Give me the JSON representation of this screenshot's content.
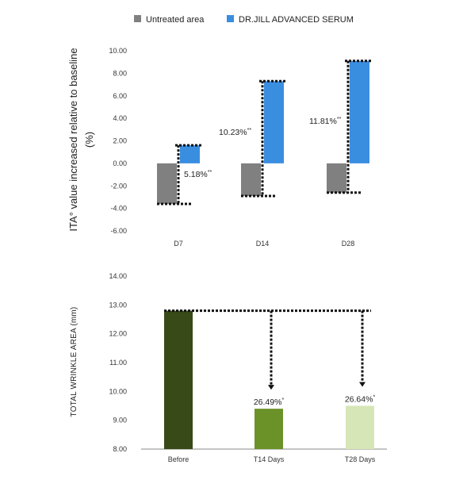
{
  "legend": [
    {
      "label": "Untreated area",
      "color": "#808080"
    },
    {
      "label": "DR.JILL ADVANCED SERUM",
      "color": "#3a8ee0"
    }
  ],
  "chart_data": [
    {
      "type": "bar",
      "ylabel_line1": "ITA°  value increased relative to baseline",
      "ylabel_line2": "(%)",
      "categories": [
        "D7",
        "D14",
        "D28"
      ],
      "series": [
        {
          "name": "Untreated area",
          "values": [
            -3.6,
            -2.9,
            -2.6
          ],
          "color": "#808080"
        },
        {
          "name": "DR.JILL ADVANCED SERUM",
          "values": [
            1.6,
            7.3,
            9.1
          ],
          "color": "#3a8ee0"
        }
      ],
      "annotations": [
        {
          "text": "5.18%",
          "sup": "**"
        },
        {
          "text": "10.23%",
          "sup": "**"
        },
        {
          "text": "11.81%",
          "sup": "**"
        }
      ],
      "yticks": [
        "10.00",
        "8.00",
        "6.00",
        "4.00",
        "2.00",
        "0.00",
        "-2.00",
        "-4.00",
        "-6.00"
      ],
      "ylim": [
        -6,
        10
      ]
    },
    {
      "type": "bar",
      "ylabel": "TOTAL WRINKLE AREA (mm)",
      "categories": [
        "Before",
        "T14 Days",
        "T28 Days"
      ],
      "values": [
        12.8,
        9.4,
        9.5
      ],
      "colors": [
        "#374a18",
        "#6b9228",
        "#d6e6b6"
      ],
      "annotations": [
        {
          "text": "",
          "sup": ""
        },
        {
          "text": "26.49%",
          "sup": "*"
        },
        {
          "text": "26.64%",
          "sup": "*"
        }
      ],
      "yticks": [
        "14.00",
        "13.00",
        "12.00",
        "11.00",
        "10.00",
        "9.00",
        "8.00"
      ],
      "ylim": [
        8,
        14
      ]
    }
  ]
}
